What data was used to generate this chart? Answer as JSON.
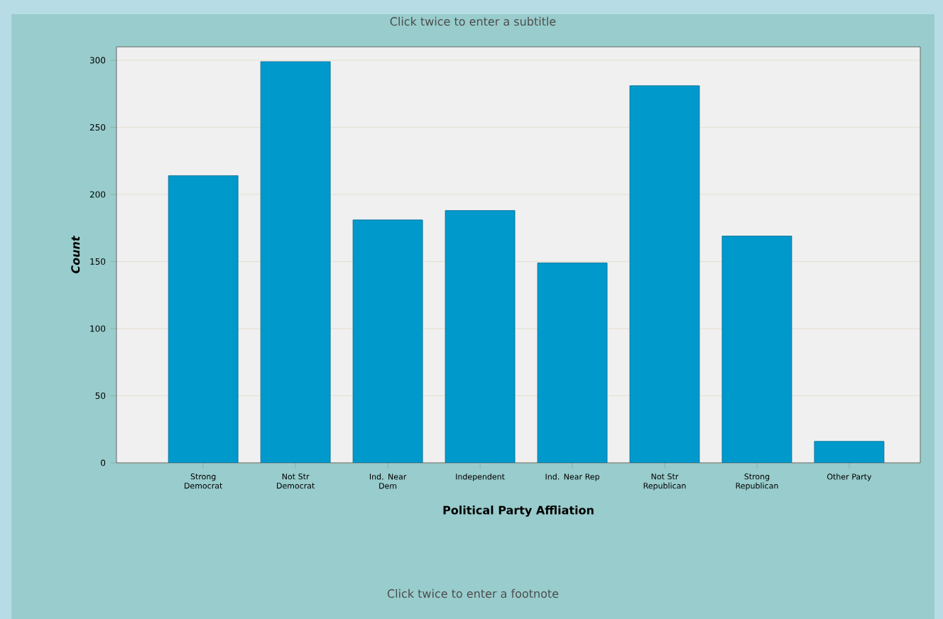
{
  "chart_data": {
    "type": "bar",
    "subtitle": "Click twice to enter a subtitle",
    "xlabel": "Political Party Affliation",
    "ylabel": "Count",
    "annotations": [
      "Click twice to enter a footnote"
    ],
    "categories": [
      "Strong Democrat",
      "Not Str Democrat",
      "Ind. Near Dem",
      "Independent",
      "Ind. Near Rep",
      "Not Str Republican",
      "Strong Republican",
      "Other Party"
    ],
    "values": [
      214,
      299,
      181,
      188,
      149,
      281,
      169,
      16
    ],
    "color": "#0099cc",
    "ylim": [
      0,
      310
    ],
    "yticks": [
      0,
      50,
      100,
      150,
      200,
      250,
      300
    ],
    "grid": "y"
  }
}
